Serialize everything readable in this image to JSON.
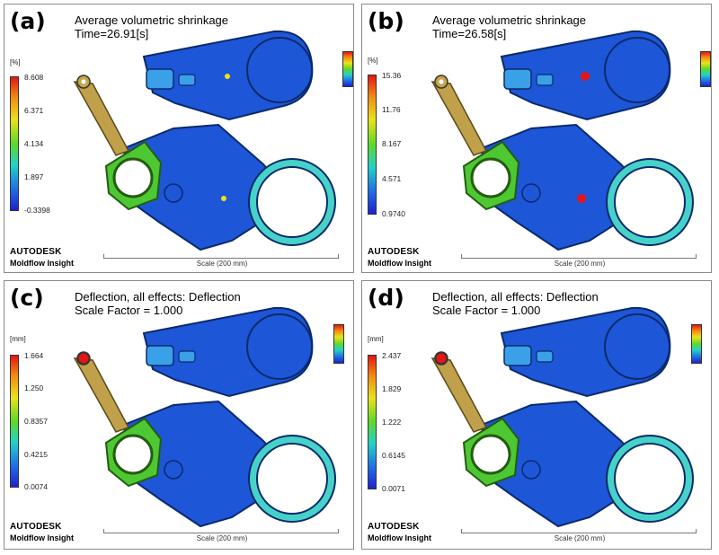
{
  "brand": {
    "line1": "AUTODESK",
    "line2": "Moldflow Insight",
    "scale": "Scale (200 mm)"
  },
  "gradient_colors": [
    "#e41515",
    "#f28a12",
    "#e9e31b",
    "#5fd82a",
    "#24d2c8",
    "#1f6fe4",
    "#1f20cf"
  ],
  "panels": [
    {
      "label": "(a)",
      "title": "Average volumetric shrinkage",
      "subtitle": "Time=26.91[s]",
      "unit": "[%]",
      "ticks": [
        "8.608",
        "6.371",
        "4.134",
        "1.897",
        "-0.3398"
      ]
    },
    {
      "label": "(b)",
      "title": "Average volumetric shrinkage",
      "subtitle": "Time=26.58[s]",
      "unit": "[%]",
      "ticks": [
        "15.36",
        "11.76",
        "8.167",
        "4.571",
        "0.9740"
      ]
    },
    {
      "label": "(c)",
      "title": "Deflection, all effects: Deflection",
      "subtitle": "Scale Factor = 1.000",
      "unit": "[mm]",
      "ticks": [
        "1.664",
        "1.250",
        "0.8357",
        "0.4215",
        "0.0074"
      ]
    },
    {
      "label": "(d)",
      "title": "Deflection, all effects: Deflection",
      "subtitle": "Scale Factor = 1.000",
      "unit": "[mm]",
      "ticks": [
        "2.437",
        "1.829",
        "1.222",
        "0.6145",
        "0.0071"
      ]
    }
  ]
}
